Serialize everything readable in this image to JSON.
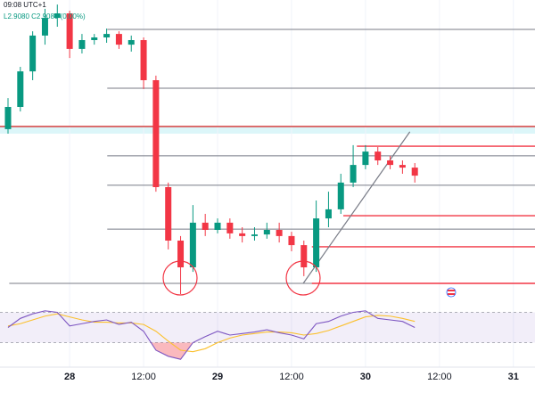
{
  "chart_data": {
    "type": "candlestick",
    "title": "09:08 UTC+1",
    "ohlc_label": "L2.9080  C2.9080  (0.00%)",
    "x": [
      14,
      16,
      18,
      20,
      22,
      24,
      26,
      28,
      30,
      32,
      34,
      36,
      38,
      40,
      42,
      44,
      46,
      48,
      50,
      52,
      54,
      56,
      58,
      60,
      62,
      64,
      66,
      68,
      70,
      72,
      74,
      76,
      78,
      80
    ],
    "open": [
      2.9257,
      2.934,
      2.9473,
      2.9607,
      2.9673,
      2.969,
      2.9557,
      2.959,
      2.96,
      2.9613,
      2.9573,
      2.959,
      2.944,
      2.904,
      2.884,
      2.874,
      2.8907,
      2.888,
      2.8907,
      2.8867,
      2.8857,
      2.8863,
      2.888,
      2.8857,
      2.8823,
      2.874,
      2.8923,
      2.8957,
      2.9057,
      2.9123,
      2.9173,
      2.914,
      2.9123,
      2.9113
    ],
    "high": [
      2.9373,
      2.949,
      2.9623,
      2.9707,
      2.9723,
      2.97,
      2.9613,
      2.9613,
      2.9633,
      2.9623,
      2.9607,
      2.96,
      2.9457,
      2.9057,
      2.8857,
      2.8973,
      2.894,
      2.8923,
      2.8923,
      2.889,
      2.889,
      2.8907,
      2.8907,
      2.8873,
      2.884,
      2.899,
      2.9023,
      2.909,
      2.9197,
      2.9197,
      2.919,
      2.9157,
      2.914,
      2.913
    ],
    "low": [
      2.924,
      2.9323,
      2.944,
      2.9573,
      2.964,
      2.9523,
      2.954,
      2.9573,
      2.958,
      2.9557,
      2.9547,
      2.9407,
      2.9023,
      2.8807,
      2.864,
      2.8723,
      2.8857,
      2.8867,
      2.8847,
      2.8833,
      2.884,
      2.8847,
      2.8833,
      2.88,
      2.8707,
      2.8723,
      2.889,
      2.894,
      2.904,
      2.9107,
      2.9123,
      2.9107,
      2.909,
      2.9057
    ],
    "close": [
      2.934,
      2.9473,
      2.9607,
      2.9673,
      2.969,
      2.9557,
      2.959,
      2.96,
      2.9613,
      2.9573,
      2.959,
      2.944,
      2.904,
      2.884,
      2.874,
      2.8907,
      2.888,
      2.8907,
      2.8867,
      2.8857,
      2.8863,
      2.888,
      2.8857,
      2.8823,
      2.874,
      2.8923,
      2.8957,
      2.9057,
      2.9123,
      2.9173,
      2.914,
      2.9123,
      2.9113,
      2.9083
    ],
    "up_color": "#089981",
    "down_color": "#f23645",
    "xlim": [
      12.7,
      99.5
    ],
    "ylim": [
      2.864,
      2.974
    ],
    "xticks": [
      {
        "value": 24,
        "label": "28"
      },
      {
        "value": 36,
        "label": "12:00"
      },
      {
        "value": 48,
        "label": "29"
      },
      {
        "value": 60,
        "label": "12:00"
      },
      {
        "value": 72,
        "label": "30"
      },
      {
        "value": 84,
        "label": "12:00"
      },
      {
        "value": 96,
        "label": "31"
      }
    ],
    "levels": [
      {
        "value": 2.963,
        "from": 30.1,
        "color": "#787b86"
      },
      {
        "value": 2.941,
        "from": 30.1,
        "color": "#787b86"
      },
      {
        "value": 2.9157,
        "from": 30.1,
        "color": "#787b86"
      },
      {
        "value": 2.9047,
        "from": 30.1,
        "color": "#787b86"
      },
      {
        "value": 2.8883,
        "from": 30.1,
        "color": "#787b86"
      },
      {
        "value": 2.868,
        "from": 14.2,
        "color": "#787b86"
      },
      {
        "value": 2.9267,
        "from": 12.7,
        "color": "#d32f2f"
      },
      {
        "value": 2.9193,
        "from": 70.6,
        "color": "#f23645"
      },
      {
        "value": 2.8933,
        "from": 68.4,
        "color": "#f23645"
      },
      {
        "value": 2.8817,
        "from": 63.3,
        "color": "#f23645"
      },
      {
        "value": 2.868,
        "from": 63.3,
        "color": "#f23645"
      }
    ],
    "zone": [
      2.924,
      2.9267
    ],
    "zone_color": "#b2ebf2",
    "trendline": {
      "x": [
        61.9,
        79.2
      ],
      "y": [
        2.868,
        2.9247
      ],
      "color": "#787b86"
    },
    "rsi": [
      50,
      62,
      68,
      72,
      70,
      52,
      55,
      58,
      60,
      54,
      57,
      45,
      20,
      12,
      8,
      30,
      38,
      45,
      40,
      42,
      44,
      47,
      43,
      40,
      35,
      55,
      58,
      65,
      70,
      72,
      62,
      60,
      58,
      50
    ],
    "rsi_signal": [
      52,
      55,
      60,
      65,
      68,
      64,
      60,
      57,
      57,
      56,
      56,
      54,
      45,
      32,
      20,
      18,
      22,
      30,
      36,
      40,
      42,
      44,
      44,
      43,
      40,
      42,
      46,
      52,
      58,
      64,
      66,
      65,
      62,
      58
    ],
    "rsi_ylim": [
      0,
      100
    ],
    "rsi_levels": [
      30,
      70
    ],
    "rsi_color": "#7e57c2",
    "rsi_signal_color": "#fbc02d"
  }
}
